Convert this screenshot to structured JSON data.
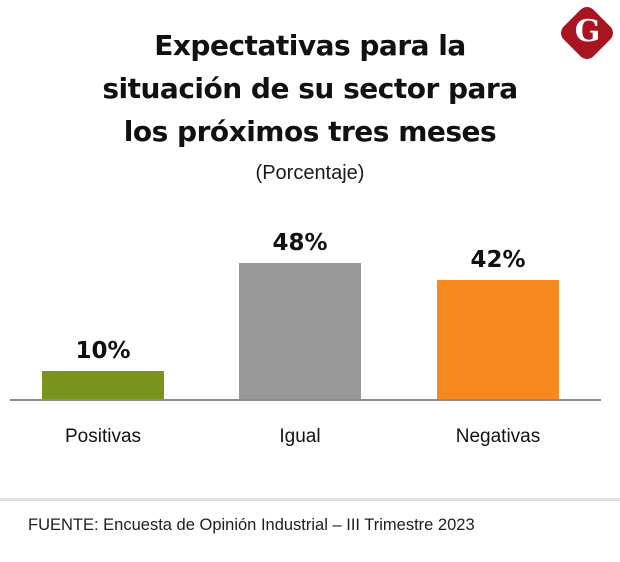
{
  "page": {
    "background": "#FFFFFF"
  },
  "logo": {
    "letter": "G",
    "bg_color": "#A81420",
    "letter_color": "#FFFFFF"
  },
  "header": {
    "title_lines": [
      "Expectativas para la",
      "situación de su sector para",
      "los próximos tres meses"
    ],
    "subtitle": "(Porcentaje)"
  },
  "chart_data": {
    "type": "bar",
    "title": "Expectativas para la situación de su sector para los próximos tres meses",
    "subtitle": "(Porcentaje)",
    "categories": [
      "Positivas",
      "Igual",
      "Negativas"
    ],
    "values": [
      10,
      48,
      42
    ],
    "value_labels": [
      "10%",
      "48%",
      "42%"
    ],
    "bar_colors": [
      "#7A941E",
      "#999999",
      "#F6891D"
    ],
    "axis_color": "#8C8C8C",
    "ylim": [
      0,
      50
    ],
    "grid": false,
    "legend": false
  },
  "footer": {
    "source": "FUENTE: Encuesta de Opinión Industrial – III Trimestre 2023",
    "divider_color": "#E1E1E1"
  }
}
